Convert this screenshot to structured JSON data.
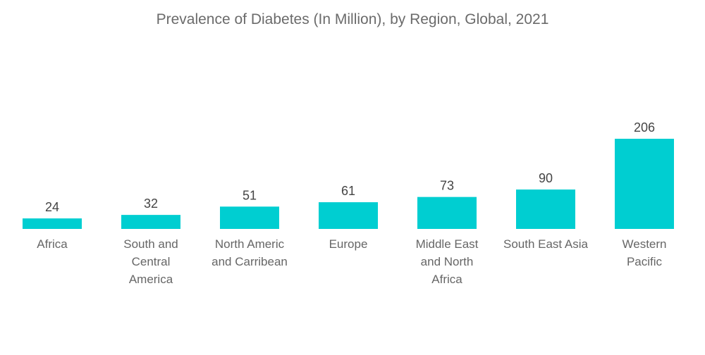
{
  "chart_data": {
    "type": "bar",
    "title": "Prevalence of Diabetes (In Million), by Region, Global, 2021",
    "xlabel": "",
    "ylabel": "",
    "categories": [
      [
        "Africa"
      ],
      [
        "South and",
        "Central",
        "America"
      ],
      [
        "North Americ",
        "and Carribean"
      ],
      [
        "Europe"
      ],
      [
        "Middle East",
        "and North",
        "Africa"
      ],
      [
        "South East Asia"
      ],
      [
        "Western",
        "Pacific"
      ]
    ],
    "values": [
      24,
      32,
      51,
      61,
      73,
      90,
      206
    ],
    "ylim": [
      0,
      206
    ],
    "grid": false,
    "legend": "none",
    "bar_color": "#00CED1"
  }
}
